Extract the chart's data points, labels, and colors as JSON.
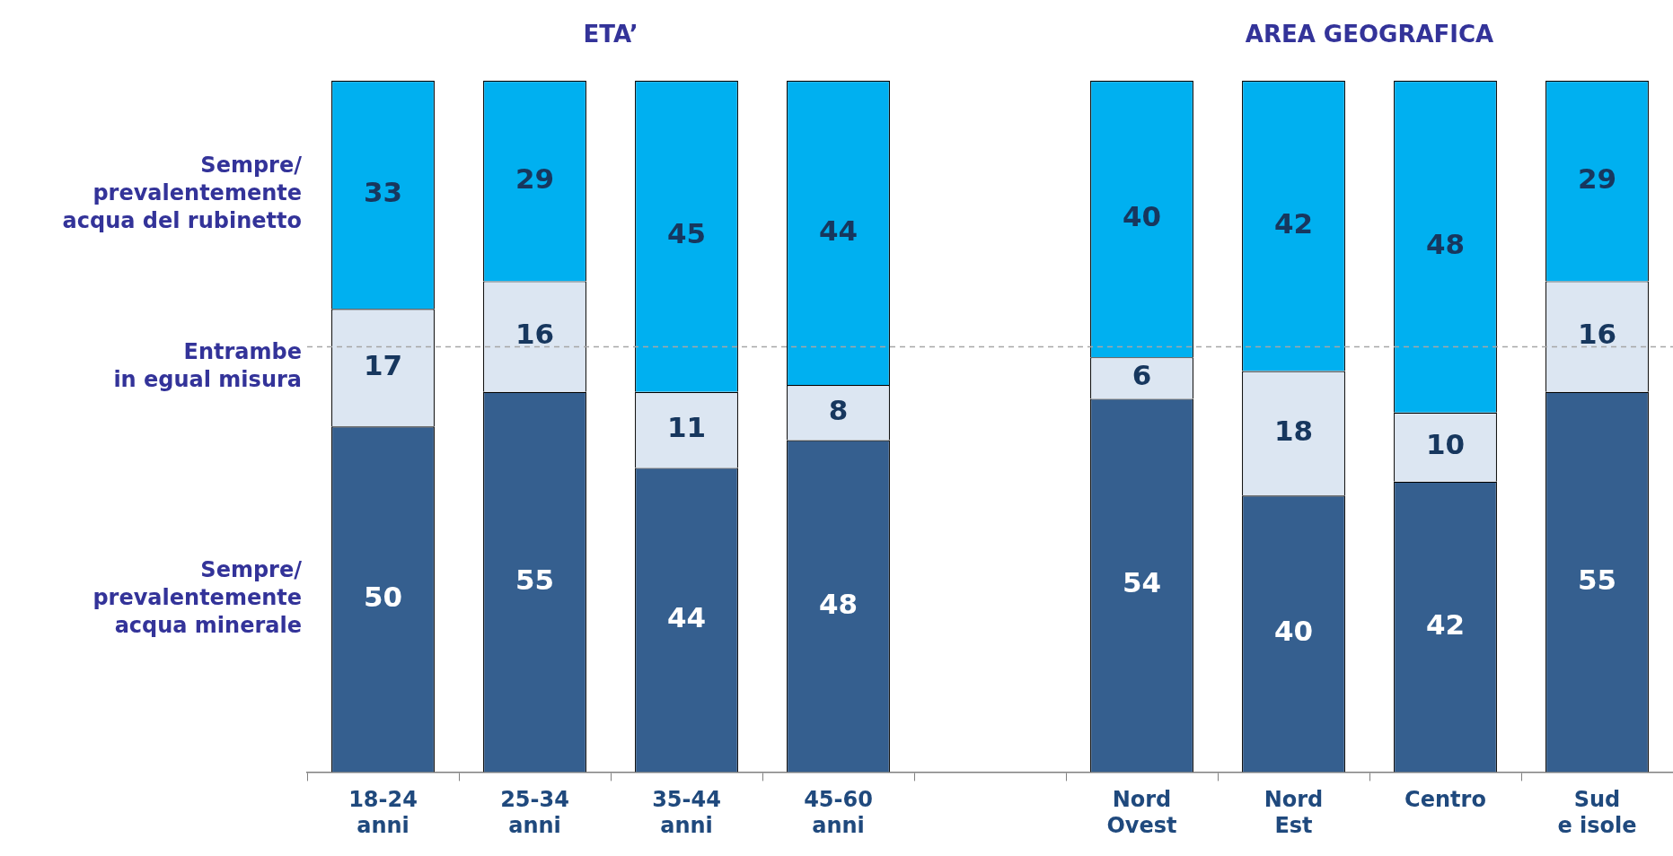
{
  "chart_data": {
    "type": "bar",
    "stacked": true,
    "data_labels": true,
    "legend": false,
    "grid": false,
    "tick_labels": "x",
    "categories": [
      "18-24\nanni",
      "25-34\nanni",
      "35-44\nanni",
      "45-60\nanni",
      null,
      "Nord\nOvest",
      "Nord\nEst",
      "Centro",
      "Sud\ne isole"
    ],
    "series": [
      {
        "name": "Sempre/\nprevalentemente\nacqua minerale",
        "color": "#355f8f",
        "values": [
          50,
          55,
          44,
          48,
          null,
          54,
          40,
          42,
          55
        ]
      },
      {
        "name": "Entrambe\nin egual misura",
        "color": "#dce6f2",
        "values": [
          17,
          16,
          11,
          8,
          null,
          6,
          18,
          10,
          16
        ]
      },
      {
        "name": "Sempre/\nprevalentemente\nacqua del rubinetto",
        "color": "#00b0f0",
        "values": [
          33,
          29,
          45,
          44,
          null,
          40,
          42,
          48,
          29
        ]
      }
    ],
    "annotations": [
      "ETA’",
      "AREA GEOGRAFICA"
    ],
    "ref_lines": [
      {
        "axis": "y",
        "value": 61.5,
        "color": "#a6a6a6",
        "line_style": "dashed"
      }
    ]
  }
}
